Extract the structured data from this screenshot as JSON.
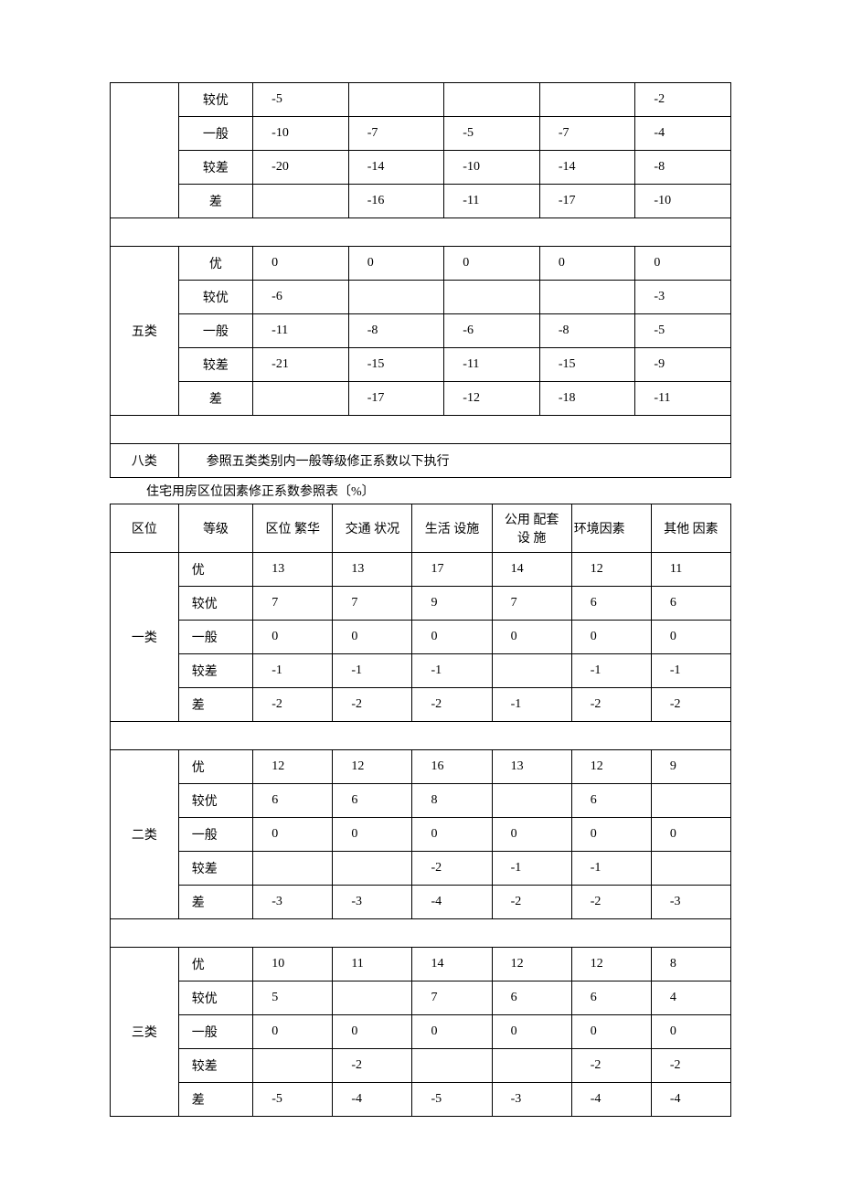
{
  "table1": {
    "groups": [
      {
        "category": "",
        "rows": [
          {
            "grade": "较优",
            "v": [
              "-5",
              "",
              "",
              "",
              "-2"
            ]
          },
          {
            "grade": "一般",
            "v": [
              "-10",
              "-7",
              "-5",
              "-7",
              "-4"
            ]
          },
          {
            "grade": "较差",
            "v": [
              "-20",
              "-14",
              "-10",
              "-14",
              "-8"
            ]
          },
          {
            "grade": "差",
            "v": [
              "",
              "-16",
              "-11",
              "-17",
              "-10"
            ]
          }
        ]
      },
      {
        "category": "五类",
        "rows": [
          {
            "grade": "优",
            "v": [
              "0",
              "0",
              "0",
              "0",
              "0"
            ]
          },
          {
            "grade": "较优",
            "v": [
              "-6",
              "",
              "",
              "",
              "-3"
            ]
          },
          {
            "grade": "一般",
            "v": [
              "-11",
              "-8",
              "-6",
              "-8",
              "-5"
            ]
          },
          {
            "grade": "较差",
            "v": [
              "-21",
              "-15",
              "-11",
              "-15",
              "-9"
            ]
          },
          {
            "grade": "差",
            "v": [
              "",
              "-17",
              "-12",
              "-18",
              "-11"
            ]
          }
        ]
      }
    ],
    "footer_category": "八类",
    "footer_text": "参照五类类别内一般等级修正系数以下执行"
  },
  "table2_title": "住宅用房区位因素修正系数参照表〔%〕",
  "table2": {
    "headers": [
      "区位",
      "等级",
      "区位  繁华",
      "交通  状况",
      "生活  设施",
      "公用 配套设  施",
      "环境因素",
      "其他  因素"
    ],
    "groups": [
      {
        "category": "一类",
        "rows": [
          {
            "grade": "优",
            "v": [
              "13",
              "13",
              "17",
              "14",
              "12",
              "11"
            ]
          },
          {
            "grade": "较优",
            "v": [
              "7",
              "7",
              "9",
              "7",
              "6",
              "6"
            ]
          },
          {
            "grade": "一般",
            "v": [
              "0",
              "0",
              "0",
              "0",
              "0",
              "0"
            ]
          },
          {
            "grade": "较差",
            "v": [
              "-1",
              "-1",
              "-1",
              "",
              "-1",
              "-1"
            ]
          },
          {
            "grade": "差",
            "v": [
              "-2",
              "-2",
              "-2",
              "-1",
              "-2",
              "-2"
            ]
          }
        ]
      },
      {
        "category": "二类",
        "rows": [
          {
            "grade": "优",
            "v": [
              "12",
              "12",
              "16",
              "13",
              "12",
              "9"
            ]
          },
          {
            "grade": "较优",
            "v": [
              "6",
              "6",
              "8",
              "",
              "6",
              ""
            ]
          },
          {
            "grade": "一般",
            "v": [
              "0",
              "0",
              "0",
              "0",
              "0",
              "0"
            ]
          },
          {
            "grade": "较差",
            "v": [
              "",
              "",
              "-2",
              "-1",
              "-1",
              ""
            ]
          },
          {
            "grade": "差",
            "v": [
              "-3",
              "-3",
              "-4",
              "-2",
              "-2",
              "-3"
            ]
          }
        ]
      },
      {
        "category": "三类",
        "rows": [
          {
            "grade": "优",
            "v": [
              "10",
              "11",
              "14",
              "12",
              "12",
              "8"
            ]
          },
          {
            "grade": "较优",
            "v": [
              "5",
              "",
              "7",
              "6",
              "6",
              "4"
            ]
          },
          {
            "grade": "一般",
            "v": [
              "0",
              "0",
              "0",
              "0",
              "0",
              "0"
            ]
          },
          {
            "grade": "较差",
            "v": [
              "",
              "-2",
              "",
              "",
              "-2",
              "-2"
            ]
          },
          {
            "grade": "差",
            "v": [
              "-5",
              "-4",
              "-5",
              "-3",
              "-4",
              "-4"
            ]
          }
        ]
      }
    ]
  }
}
